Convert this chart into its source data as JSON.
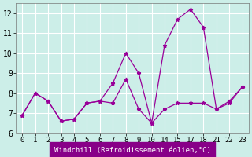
{
  "xlabel": "Windchill (Refroidissement éolien,°C)",
  "background_color": "#cceee8",
  "line_color": "#990099",
  "grid_color": "#ffffff",
  "ylim": [
    6.0,
    12.5
  ],
  "yticks": [
    6,
    7,
    8,
    9,
    10,
    11,
    12
  ],
  "xtick_labels": [
    "0",
    "1",
    "2",
    "3",
    "4",
    "5",
    "6",
    "7",
    "8",
    "9",
    "10",
    "14",
    "15",
    "17",
    "18",
    "21",
    "22",
    "23"
  ],
  "series": [
    {
      "indices": [
        0,
        1,
        2,
        3,
        4,
        5,
        6,
        7,
        8,
        9,
        10,
        11,
        12,
        13,
        14,
        15,
        16,
        17
      ],
      "y": [
        6.9,
        8.0,
        7.6,
        6.6,
        6.7,
        7.5,
        7.6,
        8.5,
        10.0,
        9.0,
        6.5,
        10.4,
        11.7,
        12.2,
        11.3,
        7.2,
        7.6,
        8.3
      ]
    },
    {
      "indices": [
        0,
        1,
        2,
        3,
        4,
        5,
        6,
        7,
        8,
        9,
        10,
        11,
        12,
        13,
        14,
        15,
        16,
        17
      ],
      "y": [
        6.9,
        8.0,
        7.6,
        6.6,
        6.7,
        7.5,
        7.6,
        7.5,
        8.7,
        7.2,
        6.5,
        7.2,
        7.5,
        7.5,
        7.5,
        7.2,
        7.5,
        8.3
      ]
    }
  ],
  "xlabel_bg": "#880088",
  "xlabel_fg": "#ffffff",
  "xlabel_fontsize": 6.5,
  "tick_fontsize": 6.5,
  "ytick_fontsize": 7.0
}
